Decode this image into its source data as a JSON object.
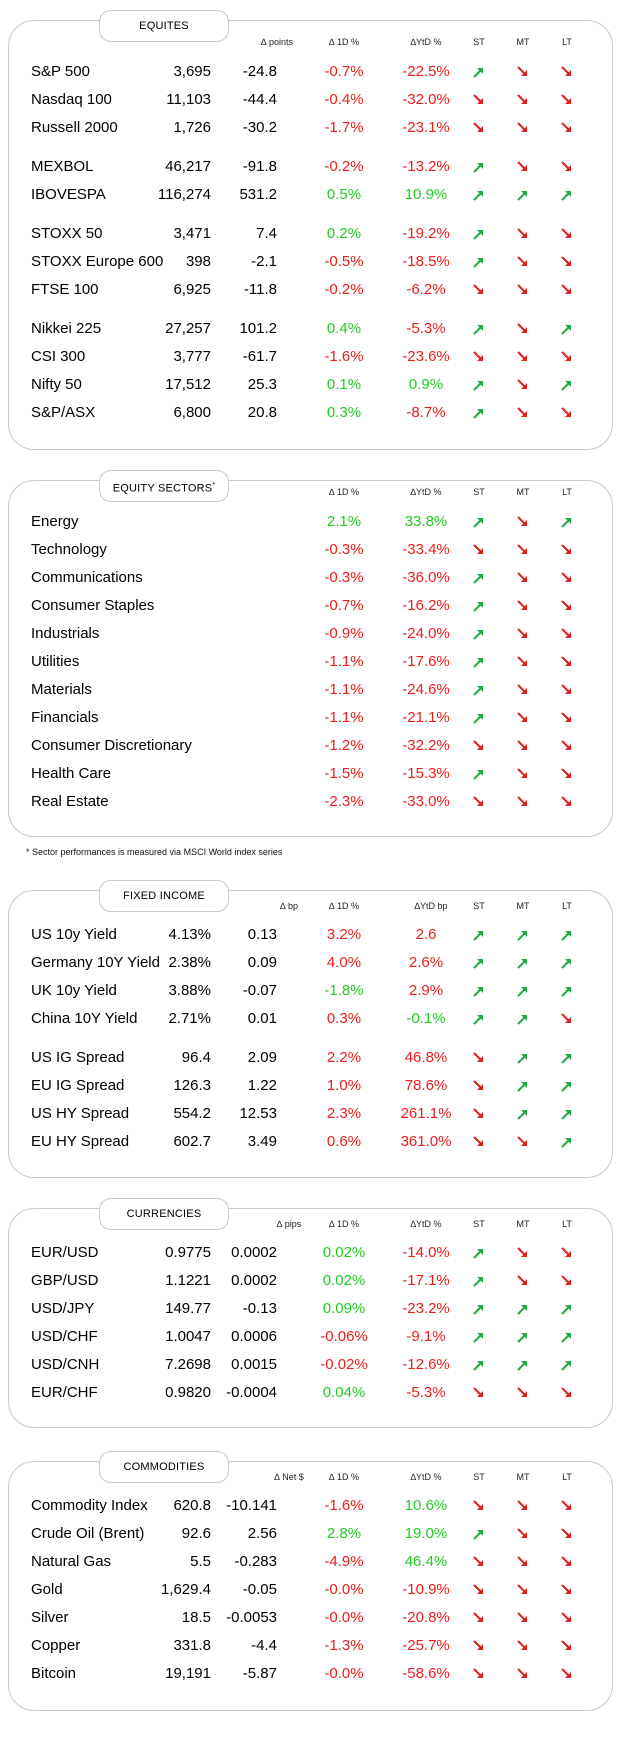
{
  "colors": {
    "positive": "#22cc22",
    "negative": "#ee1c1c",
    "up_arrow": "#22aa44",
    "down_arrow": "#e02020"
  },
  "columns": {
    "d1": "∆ 1D %",
    "ytd": "∆YtD %",
    "ytd_bp": "∆YtD bp",
    "st": "ST",
    "mt": "MT",
    "lt": "LT"
  },
  "equities": {
    "title": "EQUITES",
    "change_label": "∆ points",
    "rows": [
      {
        "name": "S&P 500",
        "level": "3,695",
        "change": "-24.8",
        "d1": "-0.7%",
        "ytd": "-22.5%",
        "st": "up",
        "mt": "down",
        "lt": "down"
      },
      {
        "name": "Nasdaq 100",
        "level": "11,103",
        "change": "-44.4",
        "d1": "-0.4%",
        "ytd": "-32.0%",
        "st": "down",
        "mt": "down",
        "lt": "down"
      },
      {
        "name": "Russell 2000",
        "level": "1,726",
        "change": "-30.2",
        "d1": "-1.7%",
        "ytd": "-23.1%",
        "st": "down",
        "mt": "down",
        "lt": "down"
      },
      {
        "name": "MEXBOL",
        "level": "46,217",
        "change": "-91.8",
        "d1": "-0.2%",
        "ytd": "-13.2%",
        "st": "up",
        "mt": "down",
        "lt": "down"
      },
      {
        "name": "IBOVESPA",
        "level": "116,274",
        "change": "531.2",
        "d1": "0.5%",
        "ytd": "10.9%",
        "st": "up",
        "mt": "up",
        "lt": "up"
      },
      {
        "name": "STOXX 50",
        "level": "3,471",
        "change": "7.4",
        "d1": "0.2%",
        "ytd": "-19.2%",
        "st": "up",
        "mt": "down",
        "lt": "down"
      },
      {
        "name": "STOXX Europe 600",
        "level": "398",
        "change": "-2.1",
        "d1": "-0.5%",
        "ytd": "-18.5%",
        "st": "up",
        "mt": "down",
        "lt": "down"
      },
      {
        "name": "FTSE 100",
        "level": "6,925",
        "change": "-11.8",
        "d1": "-0.2%",
        "ytd": "-6.2%",
        "st": "down",
        "mt": "down",
        "lt": "down"
      },
      {
        "name": "Nikkei 225",
        "level": "27,257",
        "change": "101.2",
        "d1": "0.4%",
        "ytd": "-5.3%",
        "st": "up",
        "mt": "down",
        "lt": "up"
      },
      {
        "name": "CSI 300",
        "level": "3,777",
        "change": "-61.7",
        "d1": "-1.6%",
        "ytd": "-23.6%",
        "st": "down",
        "mt": "down",
        "lt": "down"
      },
      {
        "name": "Nifty  50",
        "level": "17,512",
        "change": "25.3",
        "d1": "0.1%",
        "ytd": "0.9%",
        "st": "up",
        "mt": "down",
        "lt": "up"
      },
      {
        "name": "S&P/ASX",
        "level": "6,800",
        "change": "20.8",
        "d1": "0.3%",
        "ytd": "-8.7%",
        "st": "up",
        "mt": "down",
        "lt": "down"
      }
    ]
  },
  "sectors": {
    "title": "EQUITY SECTORS",
    "title_mark": "*",
    "footnote": "* Sector performances is measured via MSCI World index series",
    "rows": [
      {
        "name": "Energy",
        "d1": "2.1%",
        "ytd": "33.8%",
        "st": "up",
        "mt": "down",
        "lt": "up"
      },
      {
        "name": "Technology",
        "d1": "-0.3%",
        "ytd": "-33.4%",
        "st": "down",
        "mt": "down",
        "lt": "down"
      },
      {
        "name": "Communications",
        "d1": "-0.3%",
        "ytd": "-36.0%",
        "st": "up",
        "mt": "down",
        "lt": "down"
      },
      {
        "name": "Consumer Staples",
        "d1": "-0.7%",
        "ytd": "-16.2%",
        "st": "up",
        "mt": "down",
        "lt": "down"
      },
      {
        "name": "Industrials",
        "d1": "-0.9%",
        "ytd": "-24.0%",
        "st": "up",
        "mt": "down",
        "lt": "down"
      },
      {
        "name": "Utilities",
        "d1": "-1.1%",
        "ytd": "-17.6%",
        "st": "up",
        "mt": "down",
        "lt": "down"
      },
      {
        "name": "Materials",
        "d1": "-1.1%",
        "ytd": "-24.6%",
        "st": "up",
        "mt": "down",
        "lt": "down"
      },
      {
        "name": "Financials",
        "d1": "-1.1%",
        "ytd": "-21.1%",
        "st": "up",
        "mt": "down",
        "lt": "down"
      },
      {
        "name": "Consumer Discretionary",
        "d1": "-1.2%",
        "ytd": "-32.2%",
        "st": "down",
        "mt": "down",
        "lt": "down"
      },
      {
        "name": "Health Care",
        "d1": "-1.5%",
        "ytd": "-15.3%",
        "st": "up",
        "mt": "down",
        "lt": "down"
      },
      {
        "name": "Real Estate",
        "d1": "-2.3%",
        "ytd": "-33.0%",
        "st": "down",
        "mt": "down",
        "lt": "down"
      }
    ]
  },
  "fixed_income": {
    "title": "FIXED INCOME",
    "change_label": "∆ bp",
    "rows": [
      {
        "name": "US 10y Yield",
        "level": "4.13%",
        "change": "0.13",
        "d1": "3.2%",
        "ytd": "2.6",
        "st": "up",
        "mt": "up",
        "lt": "up"
      },
      {
        "name": "Germany 10Y Yield",
        "level": "2.38%",
        "change": "0.09",
        "d1": "4.0%",
        "ytd": "2.6%",
        "st": "up",
        "mt": "up",
        "lt": "up"
      },
      {
        "name": "UK 10y Yield",
        "level": "3.88%",
        "change": "-0.07",
        "d1": "-1.8%",
        "ytd": "2.9%",
        "st": "up",
        "mt": "up",
        "lt": "up"
      },
      {
        "name": "China 10Y Yield",
        "level": "2.71%",
        "change": "0.01",
        "d1": "0.3%",
        "ytd": "-0.1%",
        "st": "up",
        "mt": "up",
        "lt": "down"
      },
      {
        "name": "US IG Spread",
        "level": "96.4",
        "change": "2.09",
        "d1": "2.2%",
        "ytd": "46.8%",
        "st": "down",
        "mt": "up",
        "lt": "up"
      },
      {
        "name": "EU IG Spread",
        "level": "126.3",
        "change": "1.22",
        "d1": "1.0%",
        "ytd": "78.6%",
        "st": "down",
        "mt": "up",
        "lt": "up"
      },
      {
        "name": "US HY Spread",
        "level": "554.2",
        "change": "12.53",
        "d1": "2.3%",
        "ytd": "261.1%",
        "st": "down",
        "mt": "up",
        "lt": "up"
      },
      {
        "name": "EU HY Spread",
        "level": "602.7",
        "change": "3.49",
        "d1": "0.6%",
        "ytd": "361.0%",
        "st": "down",
        "mt": "down",
        "lt": "up"
      }
    ]
  },
  "currencies": {
    "title": "CURRENCIES",
    "change_label": "∆ pips",
    "rows": [
      {
        "name": "EUR/USD",
        "level": "0.9775",
        "change": "0.0002",
        "d1": "0.02%",
        "ytd": "-14.0%",
        "st": "up",
        "mt": "down",
        "lt": "down"
      },
      {
        "name": "GBP/USD",
        "level": "1.1221",
        "change": "0.0002",
        "d1": "0.02%",
        "ytd": "-17.1%",
        "st": "up",
        "mt": "down",
        "lt": "down"
      },
      {
        "name": "USD/JPY",
        "level": "149.77",
        "change": "-0.13",
        "d1": "0.09%",
        "ytd": "-23.2%",
        "st": "up",
        "mt": "up",
        "lt": "up"
      },
      {
        "name": "USD/CHF",
        "level": "1.0047",
        "change": "0.0006",
        "d1": "-0.06%",
        "ytd": "-9.1%",
        "st": "up",
        "mt": "up",
        "lt": "up"
      },
      {
        "name": "USD/CNH",
        "level": "7.2698",
        "change": "0.0015",
        "d1": "-0.02%",
        "ytd": "-12.6%",
        "st": "up",
        "mt": "up",
        "lt": "up"
      },
      {
        "name": "EUR/CHF",
        "level": "0.9820",
        "change": "-0.0004",
        "d1": "0.04%",
        "ytd": "-5.3%",
        "st": "down",
        "mt": "down",
        "lt": "down"
      }
    ]
  },
  "commodities": {
    "title": "COMMODITIES",
    "change_label": "∆ Net $",
    "rows": [
      {
        "name": "Commodity Index",
        "level": "620.8",
        "change": "-10.141",
        "d1": "-1.6%",
        "ytd": "10.6%",
        "st": "down",
        "mt": "down",
        "lt": "down"
      },
      {
        "name": "Crude Oil (Brent)",
        "level": "92.6",
        "change": "2.56",
        "d1": "2.8%",
        "ytd": "19.0%",
        "st": "up",
        "mt": "down",
        "lt": "down"
      },
      {
        "name": "Natural Gas",
        "level": "5.5",
        "change": "-0.283",
        "d1": "-4.9%",
        "ytd": "46.4%",
        "st": "down",
        "mt": "down",
        "lt": "down"
      },
      {
        "name": "Gold",
        "level": "1,629.4",
        "change": "-0.05",
        "d1": "-0.0%",
        "ytd": "-10.9%",
        "st": "down",
        "mt": "down",
        "lt": "down"
      },
      {
        "name": "Silver",
        "level": "18.5",
        "change": "-0.0053",
        "d1": "-0.0%",
        "ytd": "-20.8%",
        "st": "down",
        "mt": "down",
        "lt": "down"
      },
      {
        "name": "Copper",
        "level": "331.8",
        "change": "-4.4",
        "d1": "-1.3%",
        "ytd": "-25.7%",
        "st": "down",
        "mt": "down",
        "lt": "down"
      },
      {
        "name": "Bitcoin",
        "level": "19,191",
        "change": "-5.87",
        "d1": "-0.0%",
        "ytd": "-58.6%",
        "st": "down",
        "mt": "down",
        "lt": "down"
      }
    ]
  }
}
